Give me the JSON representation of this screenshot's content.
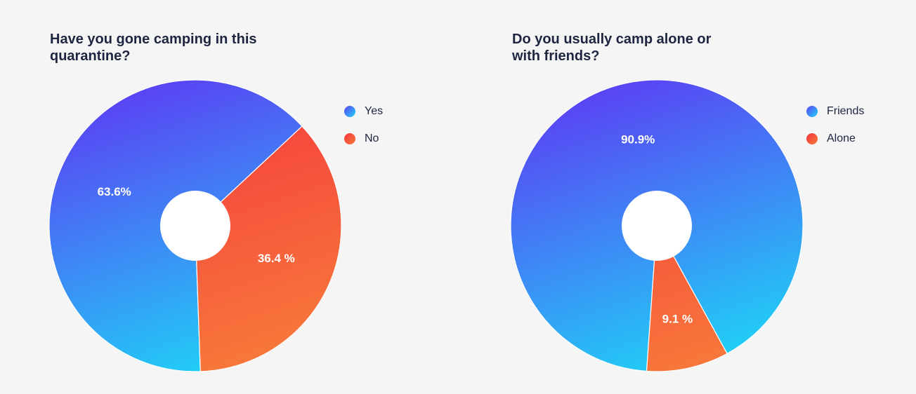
{
  "chart_data": [
    {
      "type": "pie",
      "title": "Have you gone camping in this quarantine?",
      "categories": [
        "Yes",
        "No"
      ],
      "values": [
        63.6,
        36.4
      ],
      "value_labels": [
        "63.6%",
        "36.4 %"
      ],
      "donut_hole": true,
      "legend_position": "right",
      "colors": {
        "Yes": [
          "#5b40f4",
          "#1fd3f6"
        ],
        "No": [
          "#f5343f",
          "#f7793a"
        ]
      }
    },
    {
      "type": "pie",
      "title": "Do you usually camp alone or with friends?",
      "categories": [
        "Friends",
        "Alone"
      ],
      "values": [
        90.9,
        9.1
      ],
      "value_labels": [
        "90.9%",
        "9.1 %"
      ],
      "donut_hole": true,
      "legend_position": "right",
      "colors": {
        "Friends": [
          "#5b40f4",
          "#1fd3f6"
        ],
        "Alone": [
          "#f5343f",
          "#f7793a"
        ]
      }
    }
  ]
}
